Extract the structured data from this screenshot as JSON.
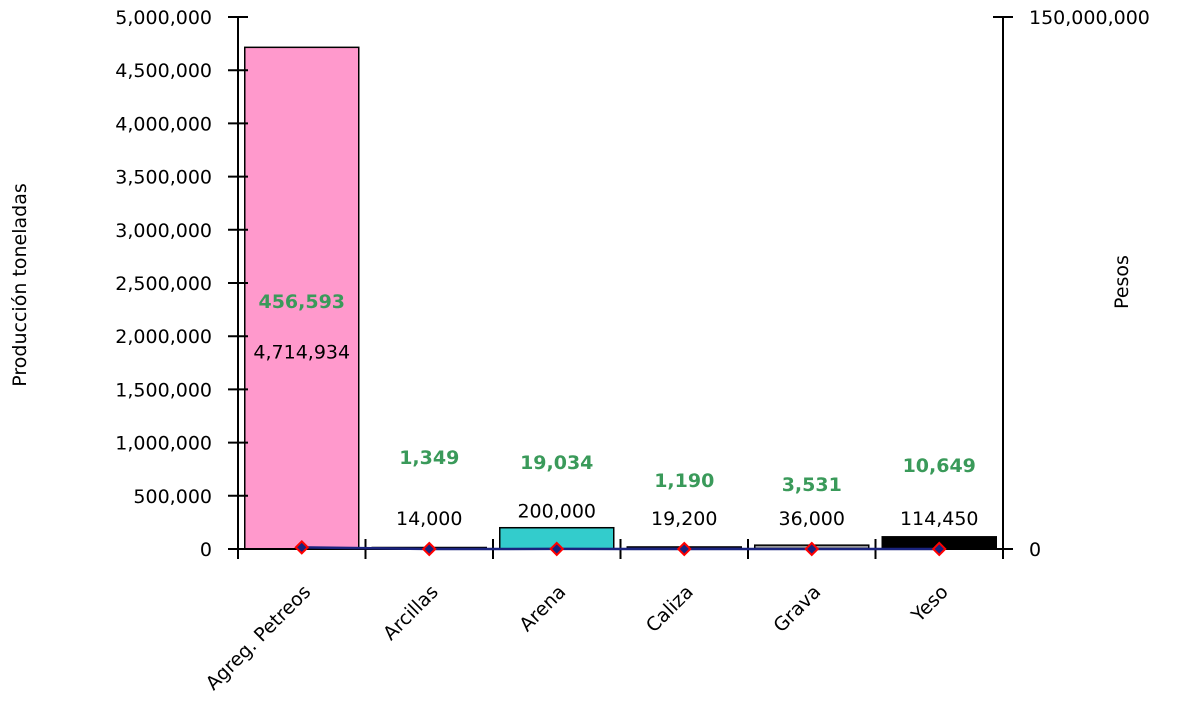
{
  "chart_data": {
    "type": "bar",
    "categories": [
      "Agreg. Petreos",
      "Arcillas",
      "Arena",
      "Caliza",
      "Grava",
      "Yeso"
    ],
    "series": [
      {
        "values": [
          4714934,
          14000,
          200000,
          19200,
          36000,
          114450
        ],
        "labels": [
          "4,714,934",
          "14,000",
          "200,000",
          "19,200",
          "36,000",
          "114,450"
        ],
        "colors": [
          "#ff99cc",
          "#333399",
          "#33cccc",
          "#333399",
          "#999999",
          "#000000"
        ]
      },
      {
        "type": "line",
        "axis": "right",
        "values": [
          456593,
          1349,
          19034,
          1190,
          3531,
          10649
        ],
        "labels": [
          "456,593",
          "1,349",
          "19,034",
          "1,190",
          "3,531",
          "10,649"
        ],
        "line_color": "#1a237e",
        "marker_color": "#1a237e",
        "marker_edge": "#ff0000",
        "label_color": "#3a9a5a"
      }
    ],
    "ylabel": "Producción toneladas",
    "y2label": "Pesos",
    "ylim": [
      0,
      5000000
    ],
    "y2lim": [
      0,
      150000000
    ],
    "yticks": [
      "0",
      "500,000",
      "1,000,000",
      "1,500,000",
      "2,000,000",
      "2,500,000",
      "3,000,000",
      "3,500,000",
      "4,000,000",
      "4,500,000",
      "5,000,000"
    ],
    "y2ticks": [
      "0",
      "150,000,000"
    ],
    "grid": false,
    "legend": "none"
  }
}
